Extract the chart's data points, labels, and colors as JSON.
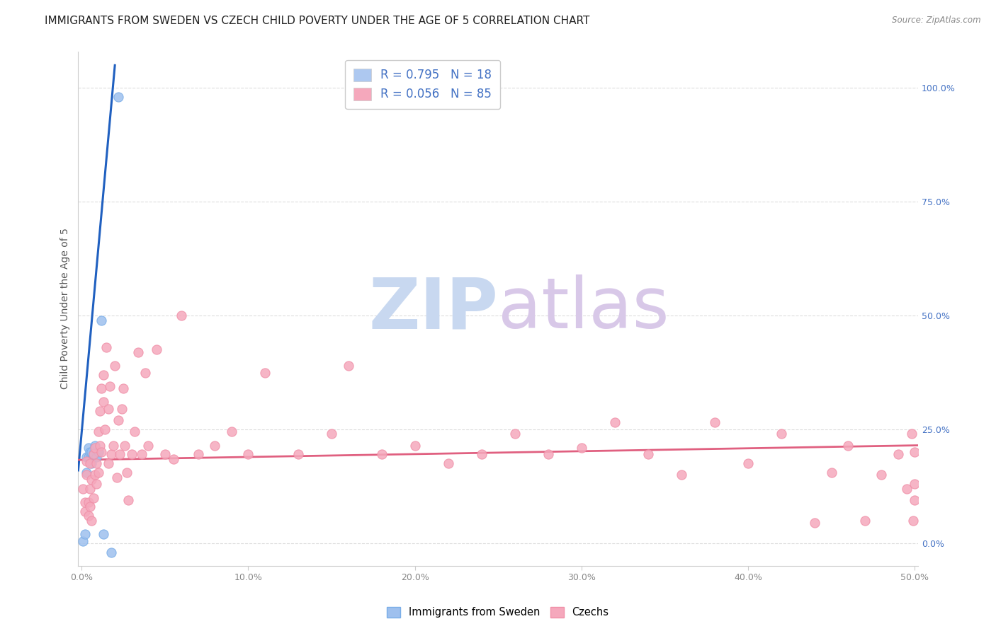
{
  "title": "IMMIGRANTS FROM SWEDEN VS CZECH CHILD POVERTY UNDER THE AGE OF 5 CORRELATION CHART",
  "source": "Source: ZipAtlas.com",
  "ylabel": "Child Poverty Under the Age of 5",
  "xlim": [
    -0.002,
    0.502
  ],
  "ylim": [
    -0.05,
    1.08
  ],
  "yticks_right": [
    0.0,
    0.25,
    0.5,
    0.75,
    1.0
  ],
  "ytick_labels_right": [
    "0.0%",
    "25.0%",
    "50.0%",
    "75.0%",
    "100.0%"
  ],
  "xticks": [
    0.0,
    0.1,
    0.2,
    0.3,
    0.4,
    0.5
  ],
  "xtick_labels": [
    "0.0%",
    "10.0%",
    "20.0%",
    "30.0%",
    "40.0%",
    "50.0%"
  ],
  "legend_entries": [
    {
      "label": "R = 0.795   N = 18",
      "color": "#adc8f0"
    },
    {
      "label": "R = 0.056   N = 85",
      "color": "#f5a8bc"
    }
  ],
  "legend_text_color": "#4472c4",
  "blue_scatter_x": [
    0.001,
    0.002,
    0.003,
    0.003,
    0.004,
    0.004,
    0.005,
    0.005,
    0.006,
    0.006,
    0.007,
    0.008,
    0.009,
    0.01,
    0.012,
    0.013,
    0.018,
    0.022
  ],
  "blue_scatter_y": [
    0.005,
    0.02,
    0.155,
    0.19,
    0.19,
    0.21,
    0.185,
    0.2,
    0.175,
    0.2,
    0.195,
    0.215,
    0.19,
    0.2,
    0.49,
    0.02,
    -0.02,
    0.98
  ],
  "pink_scatter_x": [
    0.001,
    0.002,
    0.002,
    0.003,
    0.003,
    0.004,
    0.004,
    0.005,
    0.005,
    0.005,
    0.006,
    0.006,
    0.007,
    0.007,
    0.008,
    0.008,
    0.009,
    0.009,
    0.01,
    0.01,
    0.011,
    0.011,
    0.012,
    0.012,
    0.013,
    0.013,
    0.014,
    0.015,
    0.016,
    0.016,
    0.017,
    0.018,
    0.019,
    0.02,
    0.021,
    0.022,
    0.023,
    0.024,
    0.025,
    0.026,
    0.027,
    0.028,
    0.03,
    0.032,
    0.034,
    0.036,
    0.038,
    0.04,
    0.045,
    0.05,
    0.055,
    0.06,
    0.07,
    0.08,
    0.09,
    0.1,
    0.11,
    0.13,
    0.15,
    0.16,
    0.18,
    0.2,
    0.22,
    0.24,
    0.26,
    0.28,
    0.3,
    0.32,
    0.34,
    0.36,
    0.38,
    0.4,
    0.42,
    0.44,
    0.45,
    0.46,
    0.47,
    0.48,
    0.49,
    0.495,
    0.498,
    0.499,
    0.5,
    0.5,
    0.5
  ],
  "pink_scatter_y": [
    0.12,
    0.07,
    0.09,
    0.15,
    0.18,
    0.06,
    0.09,
    0.08,
    0.12,
    0.175,
    0.05,
    0.14,
    0.1,
    0.195,
    0.15,
    0.21,
    0.13,
    0.175,
    0.155,
    0.245,
    0.215,
    0.29,
    0.2,
    0.34,
    0.37,
    0.31,
    0.25,
    0.43,
    0.295,
    0.175,
    0.345,
    0.195,
    0.215,
    0.39,
    0.145,
    0.27,
    0.195,
    0.295,
    0.34,
    0.215,
    0.155,
    0.095,
    0.195,
    0.245,
    0.42,
    0.195,
    0.375,
    0.215,
    0.425,
    0.195,
    0.185,
    0.5,
    0.195,
    0.215,
    0.245,
    0.195,
    0.375,
    0.195,
    0.24,
    0.39,
    0.195,
    0.215,
    0.175,
    0.195,
    0.24,
    0.195,
    0.21,
    0.265,
    0.195,
    0.15,
    0.265,
    0.175,
    0.24,
    0.045,
    0.155,
    0.215,
    0.05,
    0.15,
    0.195,
    0.12,
    0.24,
    0.05,
    0.2,
    0.095,
    0.13
  ],
  "blue_line_x": [
    -0.002,
    0.02
  ],
  "blue_line_y": [
    0.16,
    1.05
  ],
  "pink_line_x": [
    -0.002,
    0.502
  ],
  "pink_line_y": [
    0.183,
    0.215
  ],
  "scatter_size": 90,
  "blue_color": "#9ec0ee",
  "pink_color": "#f5a8bc",
  "blue_edge_color": "#7aaee8",
  "pink_edge_color": "#f090a8",
  "blue_line_color": "#2060c0",
  "pink_line_color": "#e06080",
  "grid_color": "#dddddd",
  "bg_color": "#ffffff",
  "title_fontsize": 11,
  "axis_label_fontsize": 10,
  "tick_fontsize": 9,
  "watermark_zip": "ZIP",
  "watermark_atlas": "atlas",
  "watermark_color_zip": "#c8d8f0",
  "watermark_color_atlas": "#d8c8e8"
}
